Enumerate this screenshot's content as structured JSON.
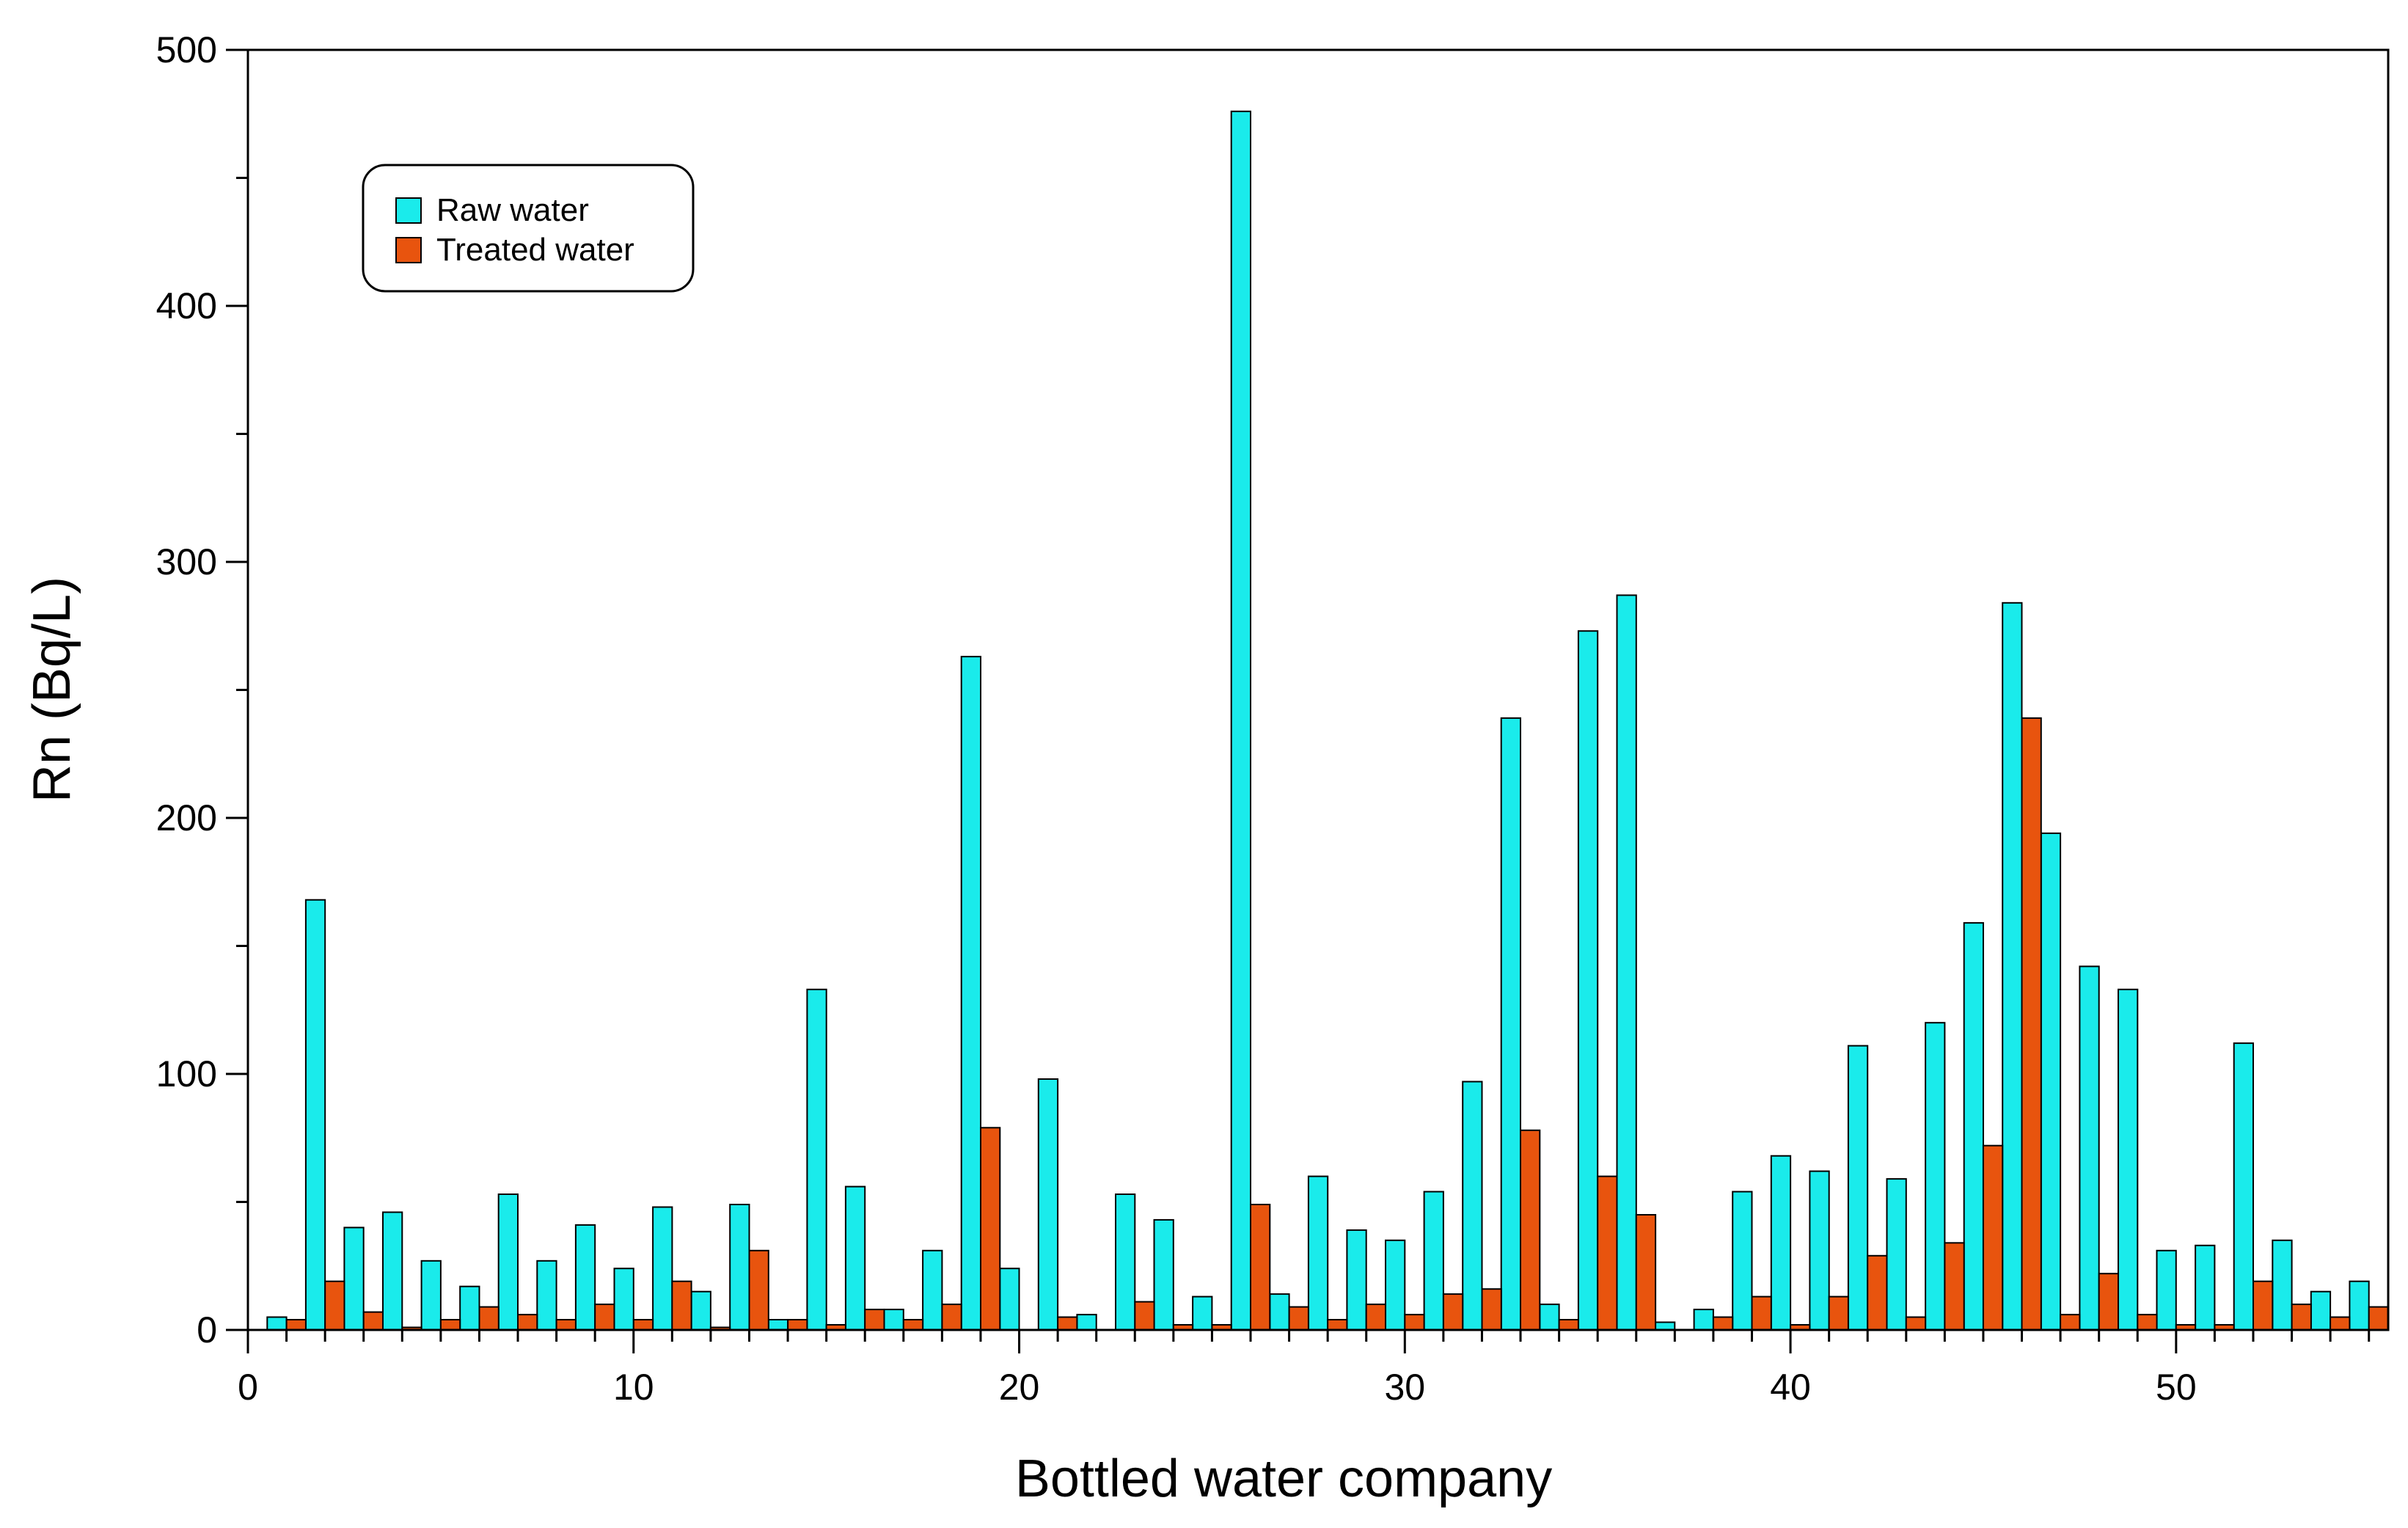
{
  "chart_data": {
    "type": "bar",
    "title": "",
    "xlabel": "Bottled water company",
    "ylabel": "Rn (Bq/L)",
    "xlim": [
      0,
      55.5
    ],
    "ylim": [
      0,
      500
    ],
    "xticks": [
      0,
      10,
      20,
      30,
      40,
      50
    ],
    "yticks": [
      0,
      100,
      200,
      300,
      400,
      500
    ],
    "x_tick_labels": [
      "0",
      "10",
      "20",
      "30",
      "40",
      "50"
    ],
    "y_tick_labels": [
      "0",
      "100",
      "200",
      "300",
      "400",
      "500"
    ],
    "grid": false,
    "legend_position": "top-left",
    "categories": [
      1,
      2,
      3,
      4,
      5,
      6,
      7,
      8,
      9,
      10,
      11,
      12,
      13,
      14,
      15,
      16,
      17,
      18,
      19,
      20,
      21,
      22,
      23,
      24,
      25,
      26,
      27,
      28,
      29,
      30,
      31,
      32,
      33,
      34,
      35,
      36,
      37,
      38,
      39,
      40,
      41,
      42,
      43,
      44,
      45,
      46,
      47,
      48,
      49,
      50,
      51,
      52,
      53,
      54,
      55
    ],
    "series": [
      {
        "name": "Raw water",
        "color": "#1AEBEB",
        "values": [
          5,
          168,
          40,
          46,
          27,
          17,
          53,
          27,
          41,
          24,
          48,
          15,
          49,
          4,
          133,
          56,
          8,
          31,
          263,
          24,
          98,
          6,
          53,
          43,
          13,
          476,
          14,
          60,
          39,
          35,
          54,
          97,
          239,
          10,
          273,
          287,
          3,
          8,
          54,
          68,
          62,
          111,
          59,
          120,
          159,
          284,
          194,
          142,
          133,
          31,
          33,
          112,
          35,
          15,
          19
        ]
      },
      {
        "name": "Treated water",
        "color": "#E8540E",
        "values": [
          4,
          19,
          7,
          1,
          4,
          9,
          6,
          4,
          10,
          4,
          19,
          1,
          31,
          4,
          2,
          8,
          4,
          10,
          79,
          0,
          5,
          0,
          11,
          2,
          2,
          49,
          9,
          4,
          10,
          6,
          14,
          16,
          78,
          4,
          60,
          45,
          0,
          5,
          13,
          2,
          13,
          29,
          5,
          34,
          72,
          239,
          6,
          22,
          6,
          2,
          2,
          19,
          10,
          5,
          9
        ]
      }
    ]
  }
}
